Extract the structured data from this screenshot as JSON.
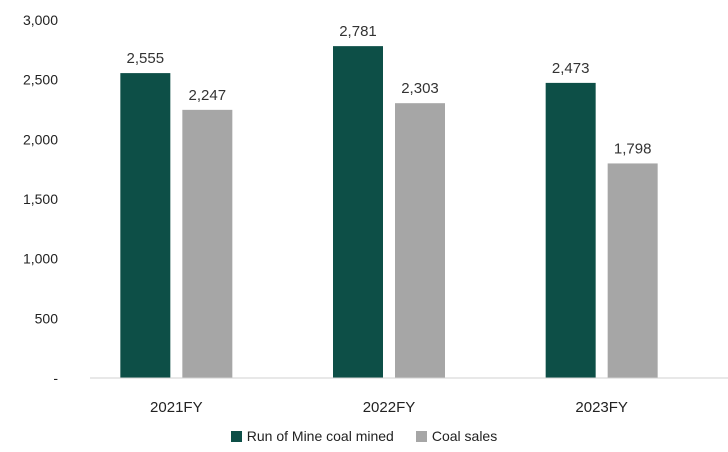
{
  "chart_data": {
    "type": "bar",
    "title": "",
    "xlabel": "",
    "ylabel": "",
    "categories": [
      "2021FY",
      "2022FY",
      "2023FY"
    ],
    "series": [
      {
        "name": "Run of Mine coal mined",
        "values": [
          2555,
          2781,
          2473
        ],
        "labels": [
          "2,555",
          "2,781",
          "2,473"
        ],
        "color": "#0d4f47"
      },
      {
        "name": "Coal sales",
        "values": [
          2247,
          2303,
          1798
        ],
        "labels": [
          "2,247",
          "2,303",
          "1,798"
        ],
        "color": "#a6a6a6"
      }
    ],
    "ylim": [
      0,
      3000
    ],
    "yticks": [
      0,
      500,
      1000,
      1500,
      2000,
      2500,
      3000
    ],
    "ytick_labels": [
      "-",
      "500",
      "1,000",
      "1,500",
      "2,000",
      "2,500",
      "3,000"
    ],
    "grid": false,
    "legend_position": "bottom"
  }
}
